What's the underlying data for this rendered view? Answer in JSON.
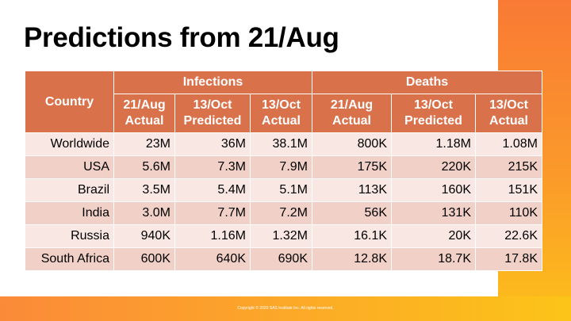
{
  "slide": {
    "title": "Predictions from 21/Aug",
    "footer": "Copyright © 2020 SAS Institute Inc. All rights reserved."
  },
  "table": {
    "country_header": "Country",
    "group_headers": [
      "Infections",
      "Deaths"
    ],
    "sub_headers": [
      [
        "21/Aug",
        "Actual"
      ],
      [
        "13/Oct",
        "Predicted"
      ],
      [
        "13/Oct",
        "Actual"
      ],
      [
        "21/Aug",
        "Actual"
      ],
      [
        "13/Oct",
        "Predicted"
      ],
      [
        "13/Oct",
        "Actual"
      ]
    ],
    "rows": [
      [
        "Worldwide",
        "23M",
        "36M",
        "38.1M",
        "800K",
        "1.18M",
        "1.08M"
      ],
      [
        "USA",
        "5.6M",
        "7.3M",
        "7.9M",
        "175K",
        "220K",
        "215K"
      ],
      [
        "Brazil",
        "3.5M",
        "5.4M",
        "5.1M",
        "113K",
        "160K",
        "151K"
      ],
      [
        "India",
        "3.0M",
        "7.7M",
        "7.2M",
        "56K",
        "131K",
        "110K"
      ],
      [
        "Russia",
        "940K",
        "1.16M",
        "1.32M",
        "16.1K",
        "20K",
        "22.6K"
      ],
      [
        "South Africa",
        "600K",
        "640K",
        "690K",
        "12.8K",
        "18.7K",
        "17.8K"
      ]
    ]
  },
  "colors": {
    "header_bg": "#d9714b",
    "row_light": "#f8e7e3",
    "row_dark": "#f1d1c7",
    "accent_orange": "#f97a35",
    "accent_yellow": "#fcc01a"
  }
}
